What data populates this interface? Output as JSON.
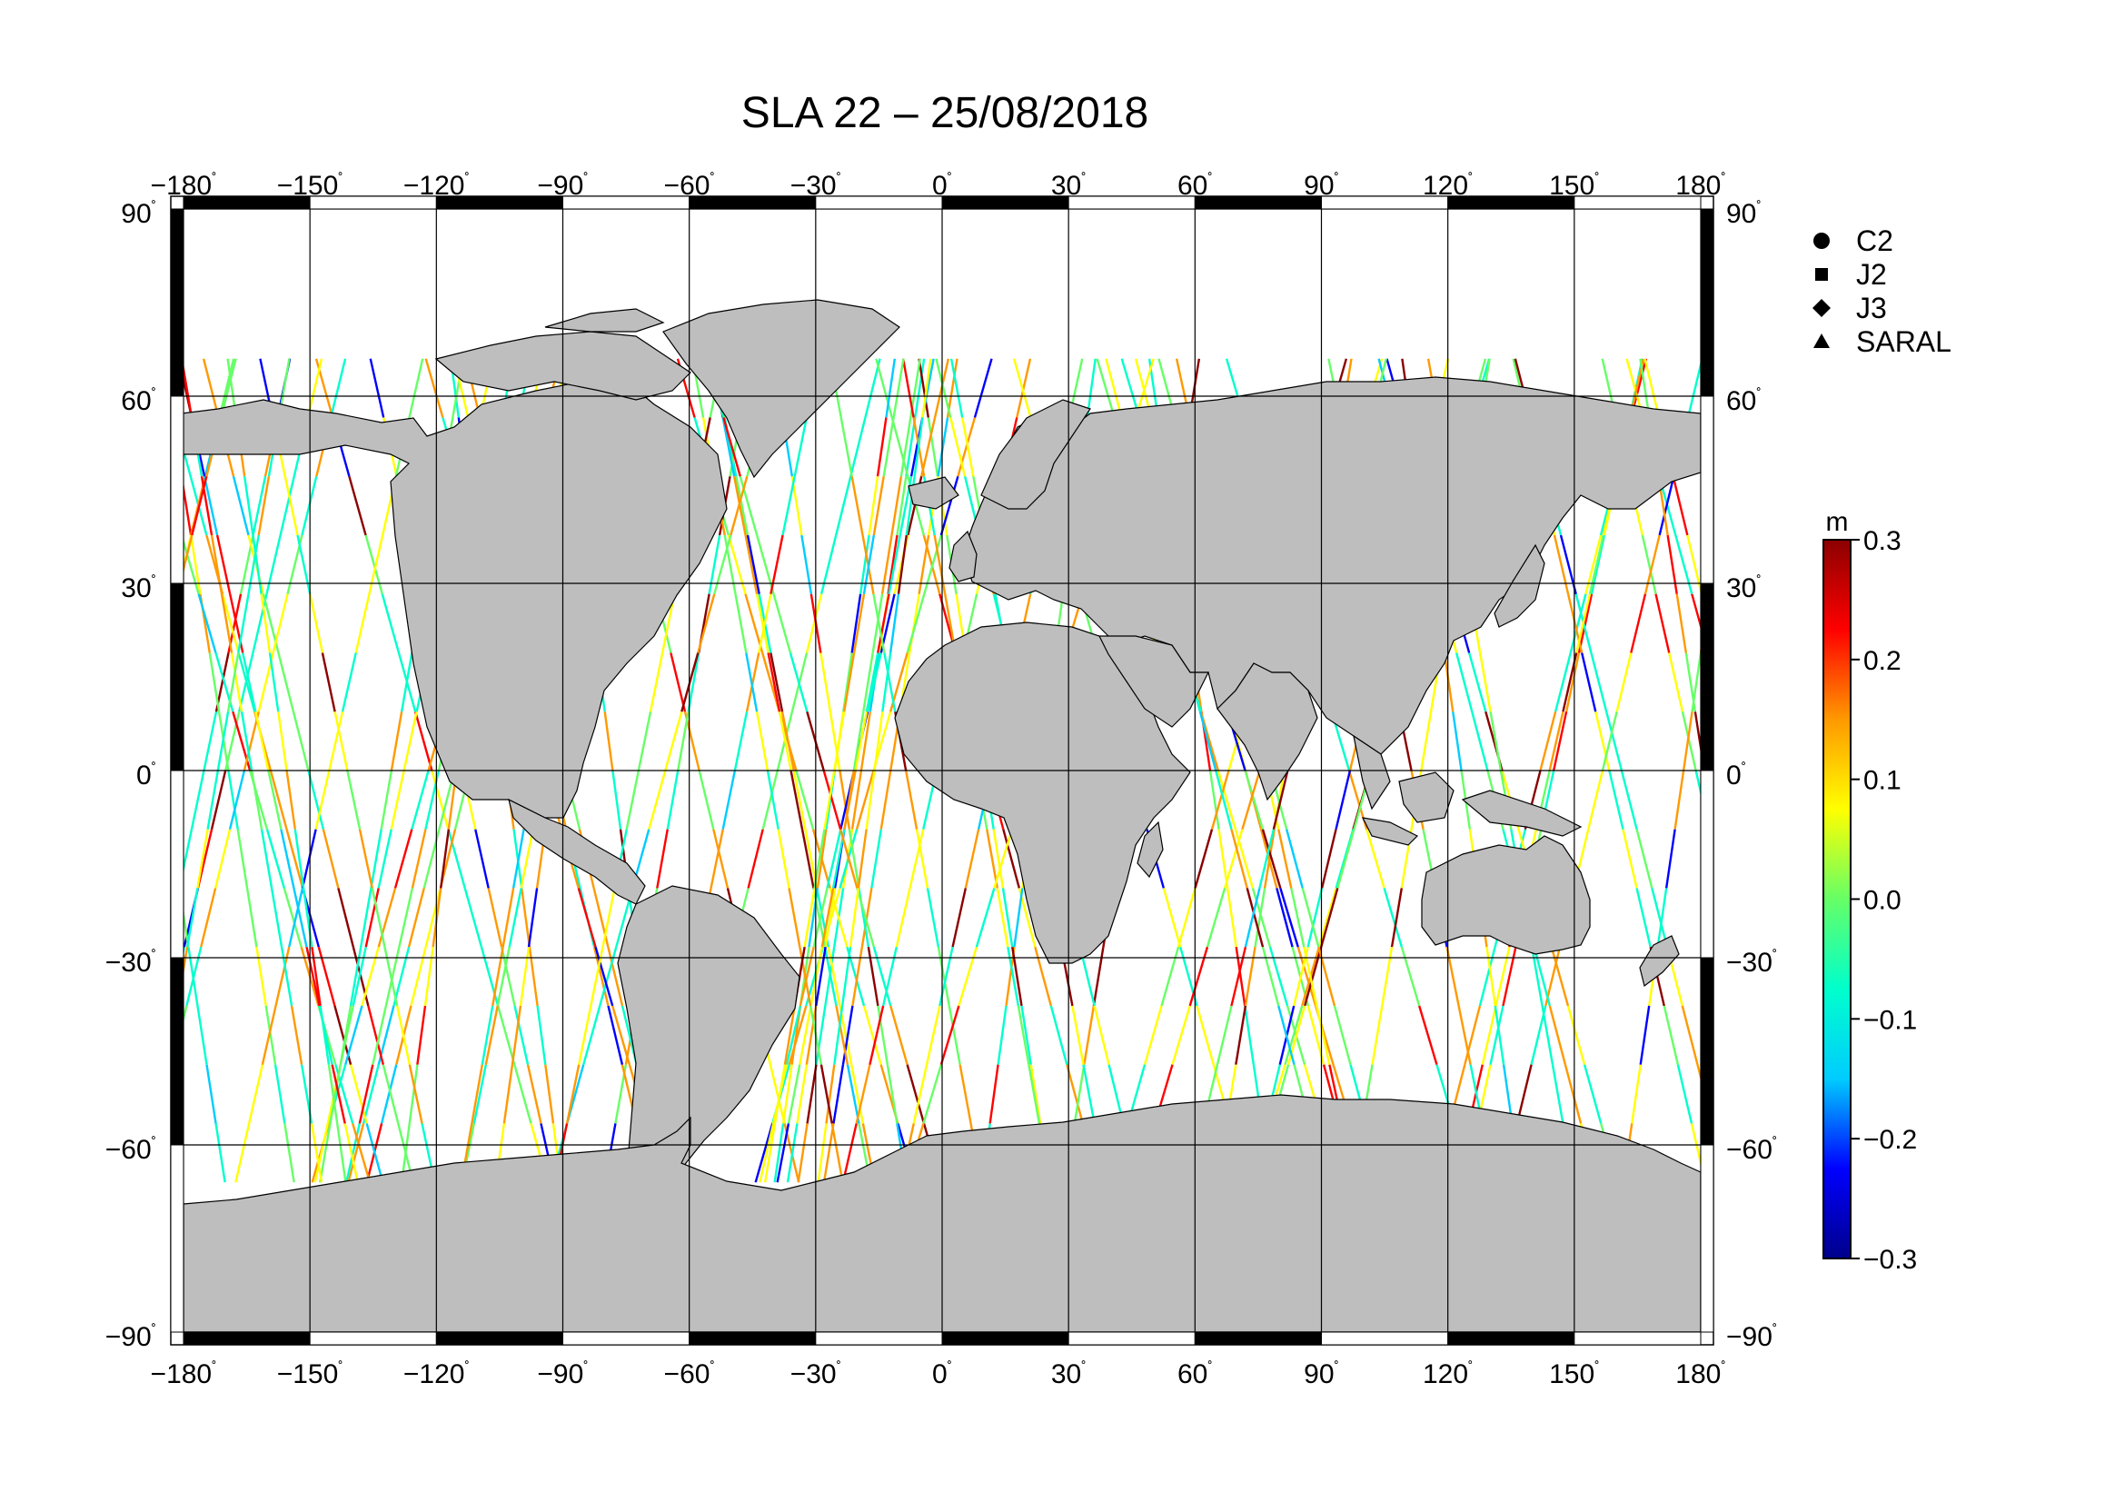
{
  "title": "SLA 22 – 25/08/2018",
  "map": {
    "projection": "equirectangular",
    "lon_range": [
      -180,
      180
    ],
    "lat_range": [
      -90,
      90
    ],
    "lon_ticks": [
      -180,
      -150,
      -120,
      -90,
      -60,
      -30,
      0,
      30,
      60,
      90,
      120,
      150,
      180
    ],
    "lat_ticks": [
      90,
      60,
      30,
      0,
      -30,
      -60,
      -90
    ],
    "lon_tick_labels": [
      "−180",
      "−150",
      "−120",
      "−90",
      "−60",
      "−30",
      "0",
      "30",
      "60",
      "90",
      "120",
      "150",
      "180"
    ],
    "lat_tick_labels": [
      "90",
      "60",
      "30",
      "0",
      "−30",
      "−60",
      "−90"
    ],
    "degree_symbol": "˚",
    "land_color": "#bebebe",
    "ocean_color": "#ffffff",
    "grid": true
  },
  "legend": {
    "items": [
      {
        "label": "C2",
        "symbol": "circle"
      },
      {
        "label": "J2",
        "symbol": "square"
      },
      {
        "label": "J3",
        "symbol": "diamond"
      },
      {
        "label": "SARAL",
        "symbol": "triangle"
      }
    ]
  },
  "colorbar": {
    "unit": "m",
    "min": -0.3,
    "max": 0.3,
    "tick_labels": [
      "0.3",
      "0.2",
      "0.1",
      "0.0",
      "−0.1",
      "−0.2",
      "−0.3"
    ],
    "colors": [
      "#00008b",
      "#0000ff",
      "#00ccff",
      "#00ffcc",
      "#66ff66",
      "#ffff00",
      "#ff9900",
      "#ff0000",
      "#8b0000"
    ]
  }
}
